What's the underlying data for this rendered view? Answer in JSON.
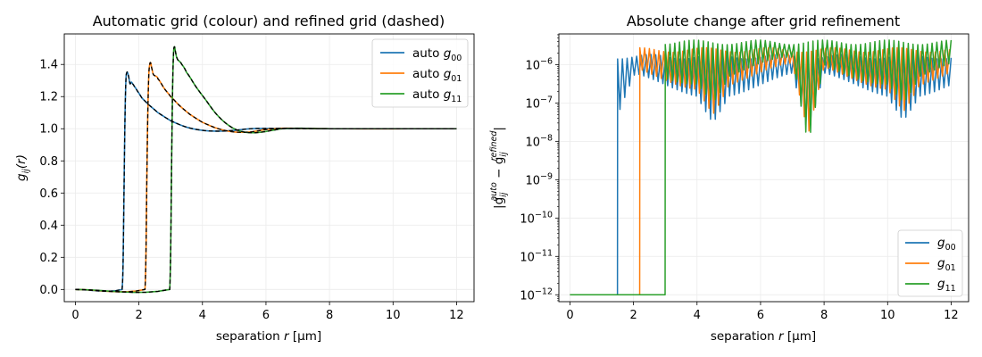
{
  "chart_data": [
    {
      "type": "line",
      "title": "Automatic grid (colour) and refined grid (dashed)",
      "xlabel": {
        "main": "separation ",
        "italic": "r",
        "unit": " [μm]"
      },
      "ylabel": {
        "main": "g",
        "sub": "ij",
        "tail": "(r)"
      },
      "xlim": [
        -0.35,
        12.55
      ],
      "ylim": [
        -0.076,
        1.59
      ],
      "xticks": [
        "0",
        "2",
        "4",
        "6",
        "8",
        "10",
        "12"
      ],
      "yticks": [
        "0.0",
        "0.2",
        "0.4",
        "0.6",
        "0.8",
        "1.0",
        "1.2",
        "1.4"
      ],
      "grid": true,
      "legend_position": "top-right",
      "series": [
        {
          "name": "auto",
          "label_sub": "00",
          "color": "#1f77b4",
          "points": [
            [
              0,
              0
            ],
            [
              1.47,
              0
            ],
            [
              1.5,
              0.15
            ],
            [
              1.53,
              0.6
            ],
            [
              1.56,
              1.05
            ],
            [
              1.59,
              1.3
            ],
            [
              1.62,
              1.35
            ],
            [
              1.65,
              1.345
            ],
            [
              1.68,
              1.32
            ],
            [
              1.72,
              1.28
            ],
            [
              1.76,
              1.29
            ],
            [
              1.8,
              1.28
            ],
            [
              1.85,
              1.265
            ],
            [
              1.95,
              1.235
            ],
            [
              2.1,
              1.19
            ],
            [
              2.3,
              1.15
            ],
            [
              2.6,
              1.1
            ],
            [
              3.0,
              1.05
            ],
            [
              3.5,
              1.01
            ],
            [
              4.0,
              0.99
            ],
            [
              4.5,
              0.985
            ],
            [
              5.0,
              0.99
            ],
            [
              5.5,
              1.0
            ],
            [
              6.0,
              1.002
            ],
            [
              7.0,
              1.001
            ],
            [
              8,
              1.0
            ],
            [
              12,
              1.0
            ]
          ]
        },
        {
          "name": "auto",
          "label_sub": "01",
          "color": "#ff7f0e",
          "points": [
            [
              0,
              0
            ],
            [
              2.19,
              0
            ],
            [
              2.22,
              0.2
            ],
            [
              2.25,
              0.7
            ],
            [
              2.28,
              1.1
            ],
            [
              2.31,
              1.33
            ],
            [
              2.34,
              1.4
            ],
            [
              2.37,
              1.41
            ],
            [
              2.4,
              1.38
            ],
            [
              2.45,
              1.34
            ],
            [
              2.5,
              1.33
            ],
            [
              2.55,
              1.325
            ],
            [
              2.6,
              1.31
            ],
            [
              2.8,
              1.25
            ],
            [
              3.0,
              1.2
            ],
            [
              3.3,
              1.14
            ],
            [
              3.6,
              1.09
            ],
            [
              4.0,
              1.04
            ],
            [
              4.5,
              1.0
            ],
            [
              5.0,
              0.98
            ],
            [
              5.5,
              0.98
            ],
            [
              6.0,
              0.995
            ],
            [
              6.5,
              1.003
            ],
            [
              7.0,
              1.002
            ],
            [
              8,
              1.0
            ],
            [
              12,
              1.0
            ]
          ]
        },
        {
          "name": "auto",
          "label_sub": "11",
          "color": "#2ca02c",
          "points": [
            [
              0,
              0
            ],
            [
              2.97,
              0
            ],
            [
              3.0,
              0.25
            ],
            [
              3.03,
              0.8
            ],
            [
              3.06,
              1.25
            ],
            [
              3.09,
              1.47
            ],
            [
              3.12,
              1.51
            ],
            [
              3.15,
              1.48
            ],
            [
              3.18,
              1.45
            ],
            [
              3.22,
              1.43
            ],
            [
              3.27,
              1.42
            ],
            [
              3.35,
              1.4
            ],
            [
              3.5,
              1.35
            ],
            [
              3.8,
              1.26
            ],
            [
              4.1,
              1.18
            ],
            [
              4.4,
              1.1
            ],
            [
              4.7,
              1.04
            ],
            [
              5.0,
              1.0
            ],
            [
              5.3,
              0.98
            ],
            [
              5.6,
              0.975
            ],
            [
              5.9,
              0.98
            ],
            [
              6.2,
              0.99
            ],
            [
              6.5,
              1.0
            ],
            [
              7.0,
              1.003
            ],
            [
              7.5,
              1.001
            ],
            [
              8,
              1.0
            ],
            [
              12,
              1.0
            ]
          ]
        }
      ]
    },
    {
      "type": "line",
      "title": "Absolute change after grid refinement",
      "xlabel": {
        "main": "separation ",
        "italic": "r",
        "unit": " [μm]"
      },
      "ylabel": {
        "pre": "|g",
        "sub1": "ij",
        "sup1": "auto",
        "mid": " − g",
        "sub2": "ij",
        "sup2": "refined",
        "post": "|"
      },
      "yscale": "log",
      "xlim": [
        -0.35,
        12.55
      ],
      "ylim_log10": [
        -12.18,
        -5.2
      ],
      "xticks": [
        "0",
        "2",
        "4",
        "6",
        "8",
        "10",
        "12"
      ],
      "yticks": [
        {
          "base": "10",
          "exp": "−12"
        },
        {
          "base": "10",
          "exp": "−11"
        },
        {
          "base": "10",
          "exp": "−10"
        },
        {
          "base": "10",
          "exp": "−9"
        },
        {
          "base": "10",
          "exp": "−8"
        },
        {
          "base": "10",
          "exp": "−7"
        },
        {
          "base": "10",
          "exp": "−6"
        }
      ],
      "grid": true,
      "legend_position": "bottom-right",
      "series": [
        {
          "name": "g",
          "label_sub": "00",
          "color": "#1f77b4",
          "onset": 1.5,
          "floor": 1e-12,
          "peak": 1.6e-06,
          "trough": 3e-07,
          "deep_dips": [
            [
              1.55,
              6e-08
            ],
            [
              4.5,
              3e-08
            ],
            [
              7.5,
              1.5e-08
            ],
            [
              10.5,
              3.5e-08
            ]
          ]
        },
        {
          "name": "g",
          "label_sub": "01",
          "color": "#ff7f0e",
          "onset": 2.2,
          "floor": 1e-12,
          "peak": 2.4e-06,
          "trough": 5e-07,
          "deep_dips": [
            [
              4.5,
              5e-08
            ],
            [
              7.5,
              1.5e-08
            ],
            [
              10.5,
              6e-08
            ]
          ]
        },
        {
          "name": "g",
          "label_sub": "11",
          "color": "#2ca02c",
          "onset": 3.0,
          "floor": 1e-12,
          "peak": 3.8e-06,
          "trough": 7e-07,
          "deep_dips": [
            [
              4.5,
              1e-07
            ],
            [
              7.5,
              8e-09
            ],
            [
              10.5,
              1e-07
            ]
          ]
        }
      ]
    }
  ]
}
